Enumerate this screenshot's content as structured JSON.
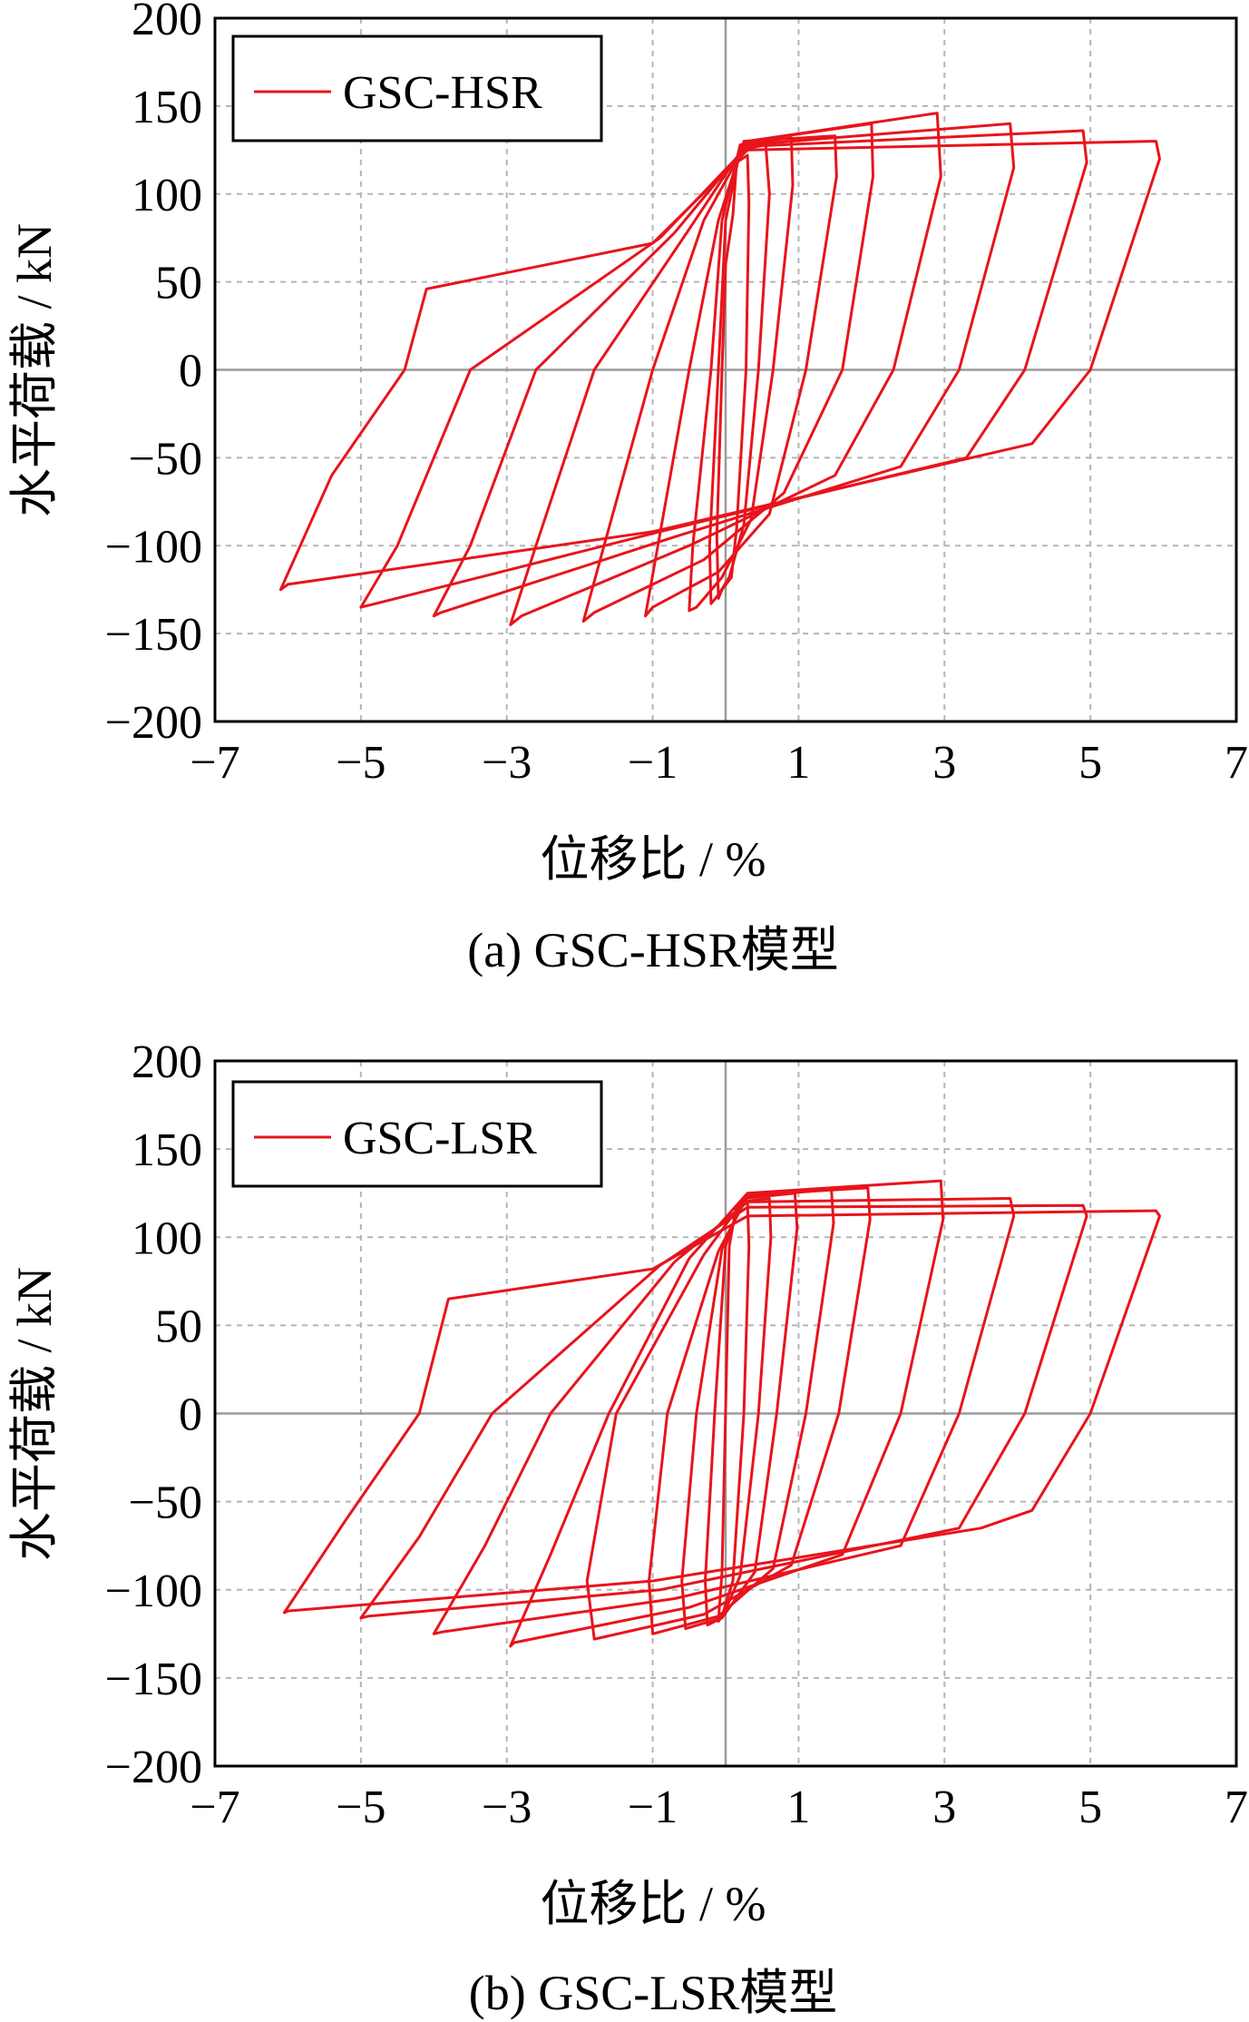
{
  "chart_data": [
    {
      "type": "line",
      "caption": "(a) GSC-HSR模型",
      "xlabel": "位移比 / %",
      "ylabel": "水平荷载 / kN",
      "xlim": [
        -7,
        7
      ],
      "ylim": [
        -200,
        200
      ],
      "xticks": [
        -7,
        -5,
        -3,
        -1,
        1,
        3,
        5,
        7
      ],
      "yticks": [
        200,
        150,
        100,
        50,
        0,
        -50,
        -100,
        -150,
        -200
      ],
      "xtick_labels": [
        "−7",
        "−5",
        "−3",
        "−1",
        "1",
        "3",
        "5",
        "7"
      ],
      "ytick_labels": [
        "200",
        "150",
        "100",
        "50",
        "0",
        "−50",
        "−100",
        "−150",
        "−200"
      ],
      "grid": true,
      "legend_position": "top-left",
      "color": "#e8141c",
      "series": [
        {
          "name": "GSC-HSR",
          "loops": [
            {
              "x": [
                0.1,
                0.15,
                0.3,
                0.32,
                0.28,
                0.15,
                0.08,
                -0.05,
                -0.1,
                -0.12,
                -0.05,
                0.0,
                0.1
              ],
              "y": [
                88,
                118,
                122,
                95,
                0,
                -90,
                -118,
                -125,
                -130,
                -95,
                0,
                60,
                88
              ]
            },
            {
              "x": [
                0.0,
                0.2,
                0.55,
                0.6,
                0.45,
                0.25,
                0.05,
                -0.1,
                -0.2,
                -0.22,
                -0.1,
                0.0
              ],
              "y": [
                85,
                125,
                128,
                100,
                0,
                -88,
                -118,
                -128,
                -133,
                -100,
                0,
                85
              ]
            },
            {
              "x": [
                -0.05,
                0.2,
                0.9,
                0.92,
                0.65,
                0.35,
                -0.05,
                -0.4,
                -0.5,
                -0.45,
                -0.2,
                -0.05
              ],
              "y": [
                85,
                128,
                132,
                105,
                0,
                -85,
                -118,
                -135,
                -137,
                -100,
                0,
                85
              ]
            },
            {
              "x": [
                -0.1,
                0.25,
                1.5,
                1.52,
                1.1,
                0.6,
                -0.1,
                -1.0,
                -1.1,
                -0.95,
                -0.5,
                -0.1
              ],
              "y": [
                85,
                130,
                133,
                110,
                0,
                -82,
                -115,
                -135,
                -140,
                -105,
                0,
                85
              ]
            },
            {
              "x": [
                -0.3,
                0.3,
                2.0,
                2.02,
                1.6,
                0.8,
                -0.3,
                -1.8,
                -1.95,
                -1.7,
                -1.0,
                -0.3
              ],
              "y": [
                85,
                130,
                140,
                110,
                0,
                -70,
                -108,
                -138,
                -143,
                -105,
                0,
                85
              ]
            },
            {
              "x": [
                -0.5,
                0.3,
                2.9,
                2.95,
                2.3,
                1.5,
                -0.5,
                -2.8,
                -2.95,
                -2.6,
                -1.8,
                -0.5
              ],
              "y": [
                80,
                130,
                146,
                110,
                0,
                -60,
                -100,
                -140,
                -145,
                -100,
                0,
                80
              ]
            },
            {
              "x": [
                -0.7,
                0.3,
                3.9,
                3.95,
                3.2,
                2.4,
                -0.7,
                -3.9,
                -4.0,
                -3.5,
                -2.6,
                -0.7
              ],
              "y": [
                78,
                128,
                140,
                115,
                0,
                -55,
                -95,
                -138,
                -140,
                -100,
                0,
                78
              ]
            },
            {
              "x": [
                -0.9,
                0.3,
                4.9,
                4.95,
                4.1,
                3.3,
                -0.9,
                -4.8,
                -5.0,
                -4.5,
                -3.5,
                -0.9
              ],
              "y": [
                75,
                127,
                136,
                118,
                0,
                -50,
                -92,
                -133,
                -135,
                -100,
                0,
                75
              ]
            },
            {
              "x": [
                -1.0,
                0.3,
                5.9,
                5.95,
                5.0,
                4.2,
                -1.0,
                -6.0,
                -6.1,
                -5.4,
                -4.4,
                -4.1,
                -1.0
              ],
              "y": [
                72,
                125,
                130,
                120,
                0,
                -42,
                -92,
                -122,
                -125,
                -60,
                0,
                46,
                72
              ]
            }
          ]
        }
      ]
    },
    {
      "type": "line",
      "caption": "(b) GSC-LSR模型",
      "xlabel": "位移比 / %",
      "ylabel": "水平荷载 / kN",
      "xlim": [
        -7,
        7
      ],
      "ylim": [
        -200,
        200
      ],
      "xticks": [
        -7,
        -5,
        -3,
        -1,
        1,
        3,
        5,
        7
      ],
      "yticks": [
        200,
        150,
        100,
        50,
        0,
        -50,
        -100,
        -150,
        -200
      ],
      "xtick_labels": [
        "−7",
        "−5",
        "−3",
        "−1",
        "1",
        "3",
        "5",
        "7"
      ],
      "ytick_labels": [
        "200",
        "150",
        "100",
        "50",
        "0",
        "−50",
        "−100",
        "−150",
        "−200"
      ],
      "grid": true,
      "legend_position": "top-left",
      "color": "#e8141c",
      "series": [
        {
          "name": "GSC-LSR",
          "loops": [
            {
              "x": [
                0.05,
                0.15,
                0.3,
                0.32,
                0.25,
                0.1,
                -0.05,
                -0.1,
                -0.05,
                0.05
              ],
              "y": [
                95,
                118,
                120,
                95,
                0,
                -95,
                -115,
                -118,
                -90,
                95
              ]
            },
            {
              "x": [
                0.0,
                0.2,
                0.6,
                0.62,
                0.45,
                0.2,
                -0.05,
                -0.25,
                -0.28,
                -0.15,
                0.0
              ],
              "y": [
                95,
                120,
                122,
                100,
                0,
                -92,
                -116,
                -120,
                -95,
                0,
                95
              ]
            },
            {
              "x": [
                -0.05,
                0.25,
                0.95,
                0.98,
                0.7,
                0.4,
                -0.05,
                -0.55,
                -0.6,
                -0.4,
                -0.05
              ],
              "y": [
                93,
                122,
                125,
                105,
                0,
                -90,
                -116,
                -122,
                -95,
                0,
                93
              ]
            },
            {
              "x": [
                -0.1,
                0.3,
                1.45,
                1.48,
                1.1,
                0.65,
                -0.1,
                -1.0,
                -1.05,
                -0.8,
                -0.1
              ],
              "y": [
                92,
                123,
                127,
                108,
                0,
                -88,
                -115,
                -125,
                -95,
                0,
                92
              ]
            },
            {
              "x": [
                -0.3,
                0.3,
                1.95,
                1.98,
                1.55,
                0.9,
                -0.3,
                -1.8,
                -1.9,
                -1.5,
                -0.3
              ],
              "y": [
                90,
                124,
                128,
                110,
                0,
                -86,
                -114,
                -128,
                -95,
                0,
                90
              ]
            },
            {
              "x": [
                -0.5,
                0.3,
                2.95,
                2.98,
                2.4,
                1.6,
                -0.5,
                -2.9,
                -2.95,
                -2.4,
                -1.6,
                -0.5
              ],
              "y": [
                88,
                125,
                132,
                110,
                0,
                -80,
                -110,
                -130,
                -132,
                -80,
                0,
                88
              ]
            },
            {
              "x": [
                -0.7,
                0.3,
                3.9,
                3.95,
                3.2,
                2.4,
                -0.7,
                -3.9,
                -4.0,
                -3.3,
                -2.4,
                -0.7
              ],
              "y": [
                86,
                120,
                122,
                112,
                0,
                -75,
                -105,
                -124,
                -125,
                -75,
                0,
                86
              ]
            },
            {
              "x": [
                -0.9,
                0.3,
                4.9,
                4.95,
                4.1,
                3.2,
                -0.9,
                -4.9,
                -5.0,
                -4.2,
                -3.2,
                -0.9
              ],
              "y": [
                84,
                117,
                118,
                112,
                0,
                -65,
                -100,
                -115,
                -116,
                -70,
                0,
                84
              ]
            },
            {
              "x": [
                -1.0,
                0.3,
                5.9,
                5.95,
                5.0,
                4.2,
                3.5,
                -1.0,
                -6.0,
                -6.05,
                -5.2,
                -4.2,
                -3.8,
                -1.0
              ],
              "y": [
                82,
                112,
                115,
                112,
                0,
                -55,
                -65,
                -95,
                -112,
                -113,
                -60,
                0,
                65,
                82
              ]
            }
          ]
        }
      ]
    }
  ]
}
